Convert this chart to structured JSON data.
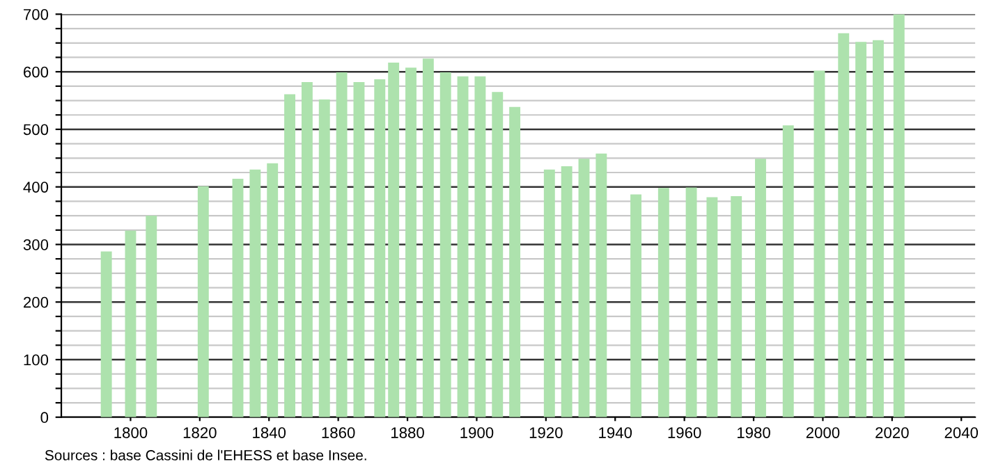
{
  "chart_data": {
    "type": "bar",
    "color": "#ade2ad",
    "x": [
      1793,
      1800,
      1806,
      1821,
      1831,
      1836,
      1841,
      1846,
      1851,
      1856,
      1861,
      1866,
      1872,
      1876,
      1881,
      1886,
      1891,
      1896,
      1901,
      1906,
      1911,
      1921,
      1926,
      1931,
      1936,
      1946,
      1954,
      1962,
      1968,
      1975,
      1982,
      1990,
      1999,
      2006,
      2011,
      2016,
      2022
    ],
    "values": [
      288,
      324,
      350,
      401,
      414,
      430,
      441,
      561,
      582,
      552,
      599,
      582,
      587,
      616,
      607,
      623,
      599,
      592,
      592,
      565,
      539,
      430,
      436,
      449,
      458,
      387,
      398,
      399,
      382,
      384,
      449,
      507,
      602,
      667,
      652,
      655,
      700
    ],
    "xlim": [
      1780,
      2044
    ],
    "xticks": [
      1800,
      1820,
      1840,
      1860,
      1880,
      1900,
      1920,
      1940,
      1960,
      1980,
      2000,
      2020,
      2040
    ],
    "ylim": [
      0,
      700
    ],
    "yticks": [
      0,
      {
        "value": 25,
        "label": null
      },
      {
        "value": 50,
        "label": null
      },
      {
        "value": 75,
        "label": null
      },
      100,
      {
        "value": 125,
        "label": null
      },
      {
        "value": 150,
        "label": null
      },
      {
        "value": 175,
        "label": null
      },
      200,
      {
        "value": 225,
        "label": null
      },
      {
        "value": 250,
        "label": null
      },
      {
        "value": 275,
        "label": null
      },
      300,
      {
        "value": 325,
        "label": null
      },
      {
        "value": 350,
        "label": null
      },
      {
        "value": 375,
        "label": null
      },
      400,
      {
        "value": 425,
        "label": null
      },
      {
        "value": 450,
        "label": null
      },
      {
        "value": 475,
        "label": null
      },
      500,
      {
        "value": 525,
        "label": null
      },
      {
        "value": 550,
        "label": null
      },
      {
        "value": 575,
        "label": null
      },
      600,
      {
        "value": 625,
        "label": null
      },
      {
        "value": 650,
        "label": null
      },
      {
        "value": 675,
        "label": null
      },
      700
    ],
    "grid": "y",
    "annotations": [
      "Sources : base Cassini de l'EHESS et base Insee."
    ]
  }
}
